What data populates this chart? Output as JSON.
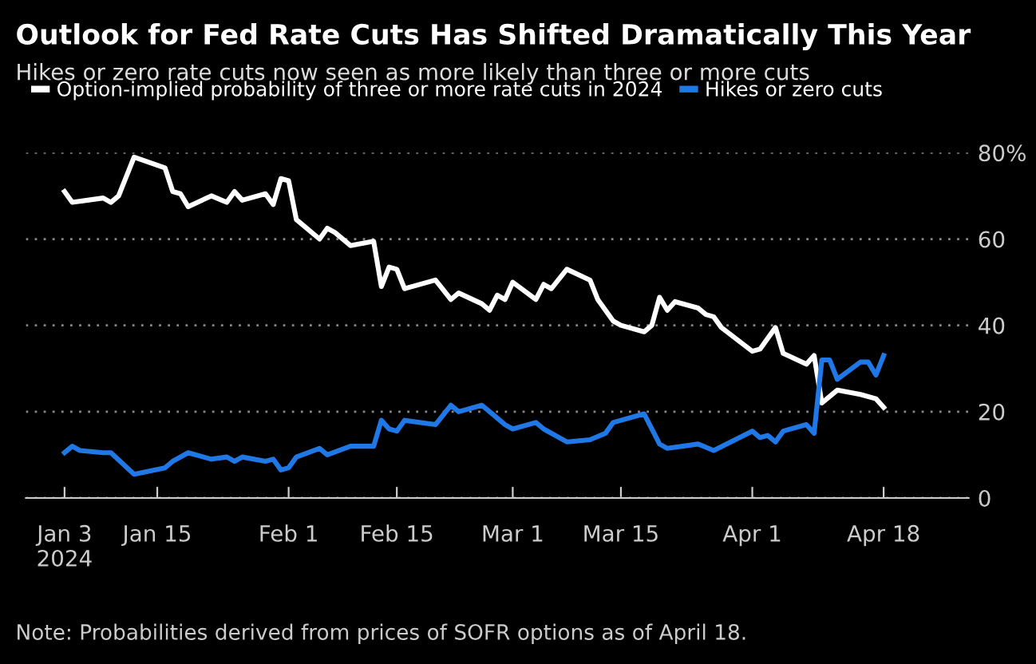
{
  "chart_data": {
    "type": "line",
    "title": "Outlook for Fed Rate Cuts Has Shifted Dramatically This Year",
    "subtitle": "Hikes or zero rate cuts now seen as more likely than three or more cuts",
    "annotations": [
      "Note: Probabilities derived from prices of SOFR options as of April 18."
    ],
    "series": [
      {
        "name": "Option-implied probability of three or more rate cuts in 2024",
        "color": "#ffffff",
        "x": [
          "2024-01-03",
          "2024-01-04",
          "2024-01-08",
          "2024-01-09",
          "2024-01-10",
          "2024-01-12",
          "2024-01-16",
          "2024-01-17",
          "2024-01-18",
          "2024-01-19",
          "2024-01-22",
          "2024-01-24",
          "2024-01-25",
          "2024-01-26",
          "2024-01-29",
          "2024-01-30",
          "2024-01-31",
          "2024-02-01",
          "2024-02-02",
          "2024-02-05",
          "2024-02-06",
          "2024-02-07",
          "2024-02-09",
          "2024-02-12",
          "2024-02-13",
          "2024-02-14",
          "2024-02-15",
          "2024-02-16",
          "2024-02-20",
          "2024-02-22",
          "2024-02-23",
          "2024-02-26",
          "2024-02-27",
          "2024-02-28",
          "2024-02-29",
          "2024-03-01",
          "2024-03-04",
          "2024-03-05",
          "2024-03-06",
          "2024-03-08",
          "2024-03-11",
          "2024-03-12",
          "2024-03-14",
          "2024-03-15",
          "2024-03-18",
          "2024-03-19",
          "2024-03-20",
          "2024-03-21",
          "2024-03-22",
          "2024-03-25",
          "2024-03-26",
          "2024-03-27",
          "2024-03-28",
          "2024-04-01",
          "2024-04-02",
          "2024-04-04",
          "2024-04-05",
          "2024-04-08",
          "2024-04-09",
          "2024-04-10",
          "2024-04-11",
          "2024-04-12",
          "2024-04-15",
          "2024-04-17",
          "2024-04-18"
        ],
        "values": [
          71,
          68.5,
          69.5,
          68.5,
          70,
          79,
          76.5,
          71,
          70.5,
          67.5,
          70,
          68.5,
          71,
          69,
          70.5,
          68,
          74,
          73.5,
          64.5,
          60,
          62.5,
          61.5,
          58.5,
          59.5,
          49,
          53.5,
          53,
          48.5,
          50.5,
          46,
          47.5,
          45,
          43.5,
          47,
          46,
          50,
          46,
          49.5,
          48.5,
          53,
          50.5,
          46,
          41,
          40,
          38.5,
          40,
          46.5,
          43.5,
          45.5,
          44,
          42.5,
          42,
          39.5,
          34,
          34.5,
          39.5,
          33.5,
          31,
          33,
          22,
          23.5,
          25,
          24,
          23,
          21
        ]
      },
      {
        "name": "Hikes or zero cuts",
        "color": "#1f78e6",
        "x": [
          "2024-01-03",
          "2024-01-04",
          "2024-01-05",
          "2024-01-08",
          "2024-01-09",
          "2024-01-12",
          "2024-01-16",
          "2024-01-17",
          "2024-01-19",
          "2024-01-22",
          "2024-01-24",
          "2024-01-25",
          "2024-01-26",
          "2024-01-29",
          "2024-01-30",
          "2024-01-31",
          "2024-02-01",
          "2024-02-02",
          "2024-02-05",
          "2024-02-06",
          "2024-02-09",
          "2024-02-12",
          "2024-02-13",
          "2024-02-14",
          "2024-02-15",
          "2024-02-16",
          "2024-02-20",
          "2024-02-22",
          "2024-02-23",
          "2024-02-26",
          "2024-02-28",
          "2024-02-29",
          "2024-03-01",
          "2024-03-04",
          "2024-03-05",
          "2024-03-08",
          "2024-03-11",
          "2024-03-13",
          "2024-03-14",
          "2024-03-18",
          "2024-03-19",
          "2024-03-20",
          "2024-03-21",
          "2024-03-25",
          "2024-03-27",
          "2024-04-01",
          "2024-04-02",
          "2024-04-03",
          "2024-04-04",
          "2024-04-05",
          "2024-04-08",
          "2024-04-09",
          "2024-04-10",
          "2024-04-11",
          "2024-04-12",
          "2024-04-15",
          "2024-04-16",
          "2024-04-17",
          "2024-04-18"
        ],
        "values": [
          10.5,
          12,
          11,
          10.5,
          10.5,
          5.5,
          7,
          8.5,
          10.5,
          9,
          9.5,
          8.5,
          9.5,
          8.5,
          9,
          6.5,
          7,
          9.5,
          11.5,
          10,
          12,
          12,
          18,
          16,
          15.5,
          18,
          17,
          21.5,
          20,
          21.5,
          18.5,
          17,
          16,
          17.5,
          16,
          13,
          13.5,
          15,
          17.5,
          19.5,
          16,
          12.5,
          11.5,
          12.5,
          11,
          15.5,
          14,
          14.5,
          13,
          15.5,
          17,
          15,
          32,
          32,
          27.5,
          31.5,
          31.5,
          28.5,
          33
        ]
      }
    ],
    "xlim": [
      "2023-12-29",
      "2024-04-29"
    ],
    "xticks": [
      {
        "value": "2024-01-03",
        "label": "Jan 3\n2024"
      },
      {
        "value": "2024-01-15",
        "label": "Jan 15"
      },
      {
        "value": "2024-02-01",
        "label": "Feb 1"
      },
      {
        "value": "2024-02-15",
        "label": "Feb 15"
      },
      {
        "value": "2024-03-01",
        "label": "Mar 1"
      },
      {
        "value": "2024-03-15",
        "label": "Mar 15"
      },
      {
        "value": "2024-04-01",
        "label": "Apr 1"
      },
      {
        "value": "2024-04-18",
        "label": "Apr 18"
      }
    ],
    "ylim": [
      0,
      80
    ],
    "yticks": [
      0,
      20,
      40,
      60,
      {
        "value": 80,
        "label": "80%"
      }
    ],
    "grid": "y",
    "legend": "top"
  }
}
